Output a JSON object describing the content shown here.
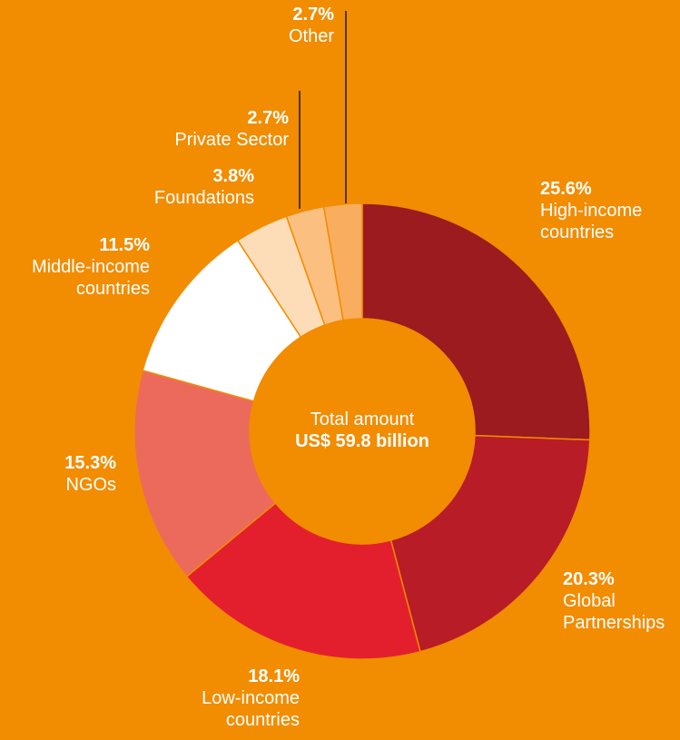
{
  "chart_data": {
    "type": "donut",
    "categories": [
      "High-income countries",
      "Global Partnerships",
      "Low-income countries",
      "NGOs",
      "Middle-income countries",
      "Foundations",
      "Private Sector",
      "Other"
    ],
    "values": [
      25.6,
      20.3,
      18.1,
      15.3,
      11.5,
      3.8,
      2.7,
      2.7
    ],
    "value_labels": [
      "25.6%",
      "20.3%",
      "18.1%",
      "15.3%",
      "11.5%",
      "3.8%",
      "2.7%",
      "2.7%"
    ],
    "colors": [
      "#9b1b1f",
      "#b81c26",
      "#e31f2e",
      "#ec6a5c",
      "#ffffff",
      "#fddcb8",
      "#fbbf80",
      "#f9ad5e"
    ],
    "center_label": "Total amount",
    "total_label": "US$ 59.8 billion"
  }
}
